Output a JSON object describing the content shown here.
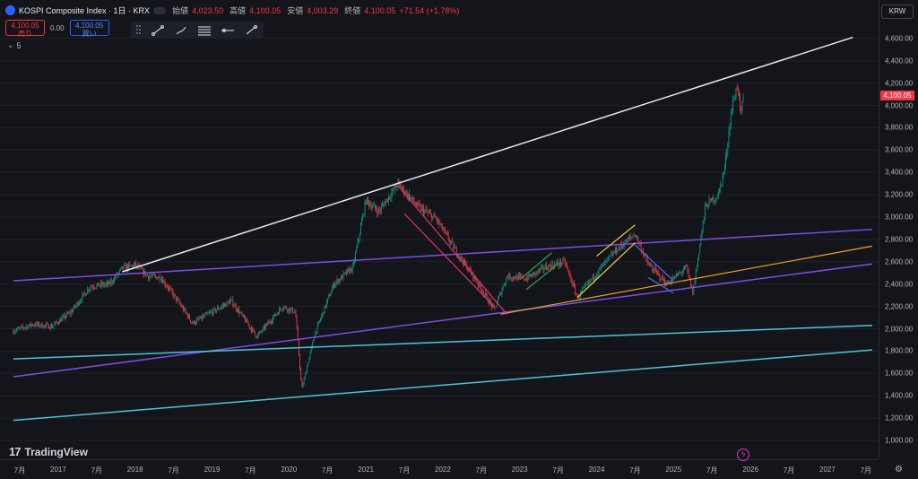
{
  "header": {
    "symbol_title": "KOSPI Composite Index · 1日 · KRX",
    "open_label": "始値",
    "open_value": "4,023.50",
    "high_label": "高値",
    "high_value": "4,100.05",
    "low_label": "安値",
    "low_value": "4,003.29",
    "close_label": "終値",
    "close_value": "4,100.05",
    "change": "+71.54 (+1.78%)"
  },
  "trade": {
    "sell_price": "4,100.05",
    "sell_label": "売り",
    "spread": "0.00",
    "buy_price": "4,100.05",
    "buy_label": "買い"
  },
  "indicators_count": "5",
  "currency": "KRW",
  "last_price_tag": "4,100.05",
  "watermark": "TradingView",
  "colors": {
    "background": "#14151a",
    "up": "#089981",
    "down": "#f23645",
    "white_line": "#e8e8ee",
    "purple_line": "#7b4fe0",
    "cyan_line": "#4fc3d9",
    "orange_line": "#f0a030",
    "pink_line": "#e0306e",
    "green_line": "#2fa84f",
    "yellow_line": "#f0d040",
    "blue_line": "#3f6fe8"
  },
  "chart_data": {
    "type": "candlestick",
    "y_ticks": [
      "4,600.00",
      "4,400.00",
      "4,200.00",
      "4,000.00",
      "3,800.00",
      "3,600.00",
      "3,400.00",
      "3,200.00",
      "3,000.00",
      "2,800.00",
      "2,600.00",
      "2,400.00",
      "2,200.00",
      "2,000.00",
      "1,800.00",
      "1,600.00",
      "1,400.00",
      "1,200.00",
      "1,000.00"
    ],
    "x_ticks": [
      "7月",
      "2017",
      "7月",
      "2018",
      "7月",
      "2019",
      "7月",
      "2020",
      "7月",
      "2021",
      "7月",
      "2022",
      "7月",
      "2023",
      "7月",
      "2024",
      "7月",
      "2025",
      "7月",
      "2026",
      "7月",
      "2027",
      "7月"
    ],
    "ylim": [
      940,
      4720
    ],
    "price_path": [
      [
        "2016-06",
        1980
      ],
      [
        "2016-09",
        2040
      ],
      [
        "2016-12",
        2020
      ],
      [
        "2017-03",
        2150
      ],
      [
        "2017-06",
        2380
      ],
      [
        "2017-09",
        2400
      ],
      [
        "2017-11",
        2540
      ],
      [
        "2018-01",
        2570
      ],
      [
        "2018-03",
        2470
      ],
      [
        "2018-05",
        2460
      ],
      [
        "2018-07",
        2300
      ],
      [
        "2018-10",
        2050
      ],
      [
        "2019-01",
        2150
      ],
      [
        "2019-04",
        2250
      ],
      [
        "2019-08",
        1930
      ],
      [
        "2019-12",
        2200
      ],
      [
        "2020-02",
        2150
      ],
      [
        "2020-03",
        1460
      ],
      [
        "2020-05",
        1950
      ],
      [
        "2020-08",
        2400
      ],
      [
        "2020-11",
        2550
      ],
      [
        "2021-01",
        3150
      ],
      [
        "2021-03",
        3050
      ],
      [
        "2021-06",
        3300
      ],
      [
        "2021-09",
        3100
      ],
      [
        "2021-12",
        2980
      ],
      [
        "2022-03",
        2700
      ],
      [
        "2022-06",
        2450
      ],
      [
        "2022-09",
        2170
      ],
      [
        "2022-11",
        2470
      ],
      [
        "2023-02",
        2450
      ],
      [
        "2023-05",
        2550
      ],
      [
        "2023-08",
        2600
      ],
      [
        "2023-10",
        2280
      ],
      [
        "2024-01",
        2500
      ],
      [
        "2024-04",
        2700
      ],
      [
        "2024-07",
        2850
      ],
      [
        "2024-09",
        2580
      ],
      [
        "2024-12",
        2400
      ],
      [
        "2025-03",
        2550
      ],
      [
        "2025-04",
        2320
      ],
      [
        "2025-06",
        3100
      ],
      [
        "2025-08",
        3200
      ],
      [
        "2025-09",
        3450
      ],
      [
        "2025-10",
        3950
      ],
      [
        "2025-11",
        4200
      ],
      [
        "2025-11-15",
        3900
      ],
      [
        "2025-12",
        4100
      ]
    ],
    "trendlines": [
      {
        "color": "white",
        "from": [
          "2017-11",
          2510
        ],
        "to": [
          "2027-05",
          4610
        ]
      },
      {
        "color": "purple",
        "from": [
          "2016-06",
          2430
        ],
        "to": [
          "2027-08",
          2890
        ]
      },
      {
        "color": "purple",
        "from": [
          "2016-06",
          1570
        ],
        "to": [
          "2027-08",
          2580
        ]
      },
      {
        "color": "cyan",
        "from": [
          "2016-06",
          1730
        ],
        "to": [
          "2027-08",
          2030
        ]
      },
      {
        "color": "cyan",
        "from": [
          "2016-06",
          1180
        ],
        "to": [
          "2027-08",
          1810
        ]
      },
      {
        "color": "orange",
        "from": [
          "2022-10",
          2130
        ],
        "to": [
          "2027-08",
          2740
        ]
      },
      {
        "color": "pink",
        "from": [
          "2021-06",
          3280
        ],
        "to": [
          "2022-11",
          2130
        ]
      },
      {
        "color": "pink",
        "from": [
          "2021-07",
          3030
        ],
        "to": [
          "2022-09",
          2200
        ]
      },
      {
        "color": "green",
        "from": [
          "2023-01",
          2440
        ],
        "to": [
          "2023-06",
          2680
        ]
      },
      {
        "color": "green",
        "from": [
          "2023-02",
          2350
        ],
        "to": [
          "2023-07",
          2580
        ]
      },
      {
        "color": "yellow",
        "from": [
          "2023-10",
          2280
        ],
        "to": [
          "2024-07",
          2770
        ]
      },
      {
        "color": "yellow",
        "from": [
          "2024-01",
          2650
        ],
        "to": [
          "2024-07",
          2930
        ]
      },
      {
        "color": "blue",
        "from": [
          "2024-07",
          2750
        ],
        "to": [
          "2025-01",
          2430
        ]
      },
      {
        "color": "blue",
        "from": [
          "2024-09",
          2460
        ],
        "to": [
          "2025-01",
          2320
        ]
      }
    ]
  }
}
